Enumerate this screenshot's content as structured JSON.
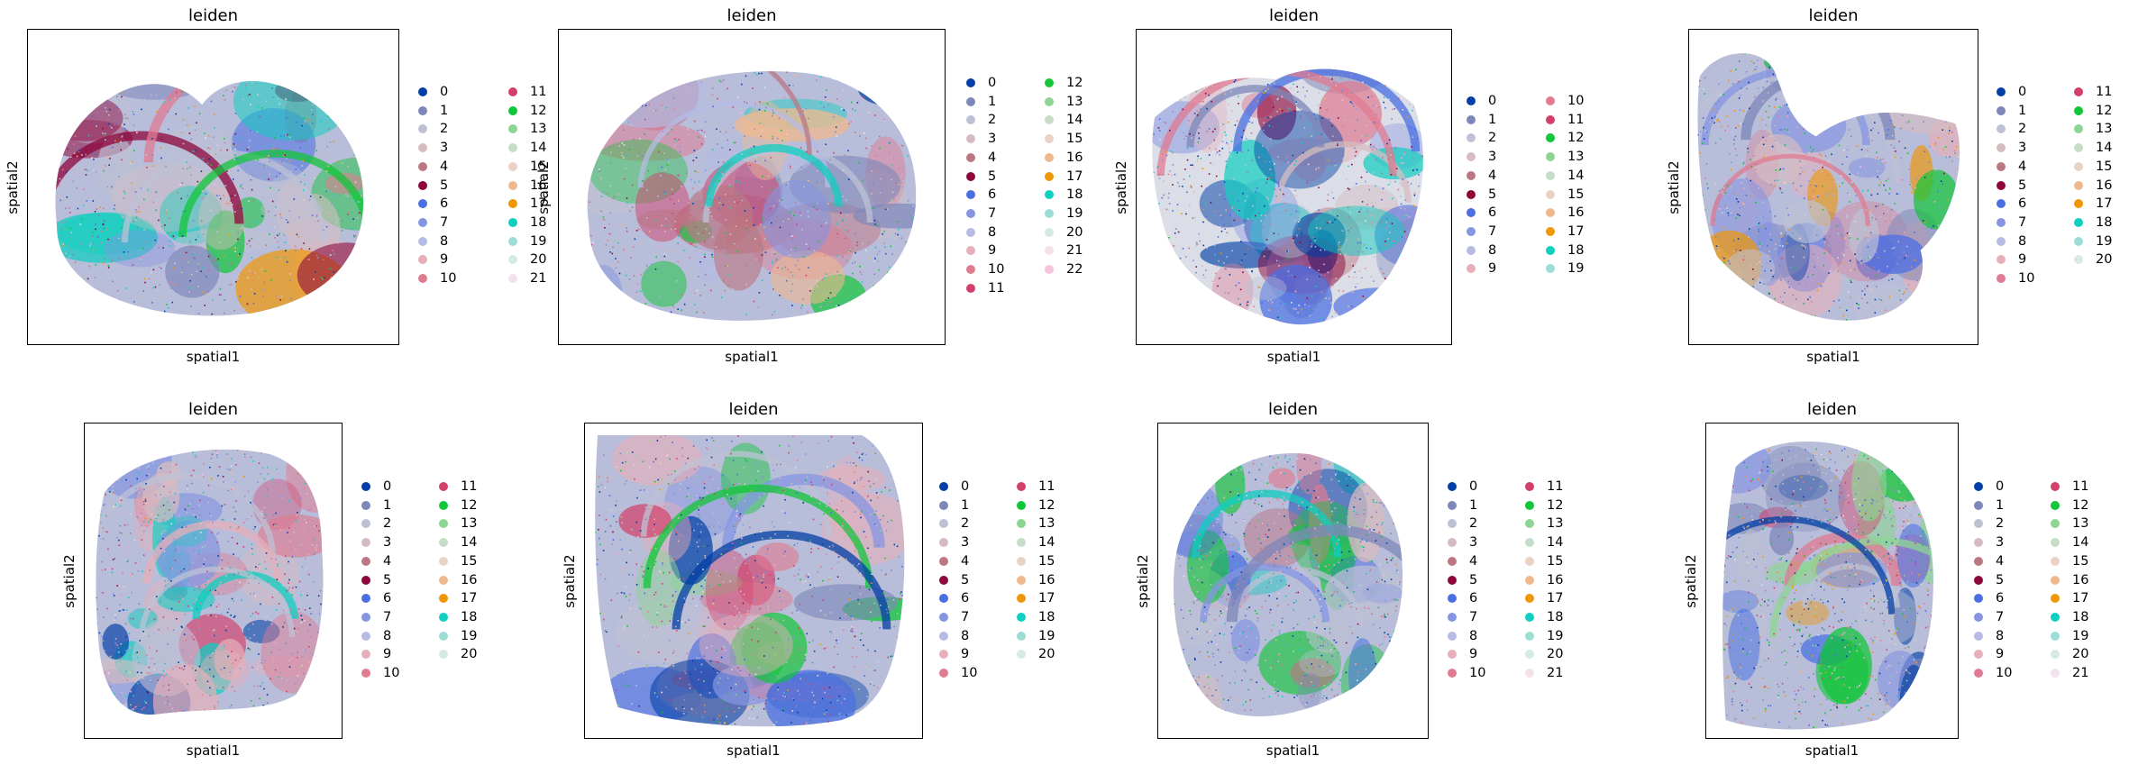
{
  "figure": {
    "panels": [
      {
        "title": "leiden",
        "xlabel": "spatial1",
        "ylabel": "spatial2",
        "legend": [
          "0",
          "1",
          "2",
          "3",
          "4",
          "5",
          "6",
          "7",
          "8",
          "9",
          "10",
          "11",
          "12",
          "13",
          "14",
          "15",
          "16",
          "17",
          "18",
          "19",
          "20",
          "21"
        ]
      },
      {
        "title": "leiden",
        "xlabel": "spatial1",
        "ylabel": "spatial2",
        "legend": [
          "0",
          "1",
          "2",
          "3",
          "4",
          "5",
          "6",
          "7",
          "8",
          "9",
          "10",
          "11",
          "12",
          "13",
          "14",
          "15",
          "16",
          "17",
          "18",
          "19",
          "20",
          "21",
          "22"
        ]
      },
      {
        "title": "leiden",
        "xlabel": "spatial1",
        "ylabel": "spatial2",
        "legend": [
          "0",
          "1",
          "2",
          "3",
          "4",
          "5",
          "6",
          "7",
          "8",
          "9",
          "10",
          "11",
          "12",
          "13",
          "14",
          "15",
          "16",
          "17",
          "18",
          "19"
        ]
      },
      {
        "title": "leiden",
        "xlabel": "spatial1",
        "ylabel": "spatial2",
        "legend": [
          "0",
          "1",
          "2",
          "3",
          "4",
          "5",
          "6",
          "7",
          "8",
          "9",
          "10",
          "11",
          "12",
          "13",
          "14",
          "15",
          "16",
          "17",
          "18",
          "19",
          "20"
        ]
      },
      {
        "title": "leiden",
        "xlabel": "spatial1",
        "ylabel": "spatial2",
        "legend": [
          "0",
          "1",
          "2",
          "3",
          "4",
          "5",
          "6",
          "7",
          "8",
          "9",
          "10",
          "11",
          "12",
          "13",
          "14",
          "15",
          "16",
          "17",
          "18",
          "19",
          "20"
        ]
      },
      {
        "title": "leiden",
        "xlabel": "spatial1",
        "ylabel": "spatial2",
        "legend": [
          "0",
          "1",
          "2",
          "3",
          "4",
          "5",
          "6",
          "7",
          "8",
          "9",
          "10",
          "11",
          "12",
          "13",
          "14",
          "15",
          "16",
          "17",
          "18",
          "19",
          "20"
        ]
      },
      {
        "title": "leiden",
        "xlabel": "spatial1",
        "ylabel": "spatial2",
        "legend": [
          "0",
          "1",
          "2",
          "3",
          "4",
          "5",
          "6",
          "7",
          "8",
          "9",
          "10",
          "11",
          "12",
          "13",
          "14",
          "15",
          "16",
          "17",
          "18",
          "19",
          "20",
          "21"
        ]
      },
      {
        "title": "leiden",
        "xlabel": "spatial1",
        "ylabel": "spatial2",
        "legend": [
          "0",
          "1",
          "2",
          "3",
          "4",
          "5",
          "6",
          "7",
          "8",
          "9",
          "10",
          "11",
          "12",
          "13",
          "14",
          "15",
          "16",
          "17",
          "18",
          "19",
          "20",
          "21"
        ]
      }
    ],
    "palette": [
      "#023fa5",
      "#7d87b9",
      "#bec1d4",
      "#d6bcc0",
      "#bb7784",
      "#8e063b",
      "#4a6fe3",
      "#8595e1",
      "#b5bbe3",
      "#e6afb9",
      "#e07b91",
      "#d33f6a",
      "#11c638",
      "#8dd593",
      "#c6dec7",
      "#ead3c6",
      "#f0b98d",
      "#ef9708",
      "#0fcfc0",
      "#9cded6",
      "#d5eae7",
      "#f3e1eb",
      "#f6c4e1"
    ]
  },
  "chart_data": [
    {
      "type": "scatter",
      "title": "leiden",
      "xlabel": "spatial1",
      "ylabel": "spatial2",
      "grid": false,
      "legend_position": "right",
      "categories": [
        "0",
        "1",
        "2",
        "3",
        "4",
        "5",
        "6",
        "7",
        "8",
        "9",
        "10",
        "11",
        "12",
        "13",
        "14",
        "15",
        "16",
        "17",
        "18",
        "19",
        "20",
        "21"
      ]
    },
    {
      "type": "scatter",
      "title": "leiden",
      "xlabel": "spatial1",
      "ylabel": "spatial2",
      "grid": false,
      "legend_position": "right",
      "categories": [
        "0",
        "1",
        "2",
        "3",
        "4",
        "5",
        "6",
        "7",
        "8",
        "9",
        "10",
        "11",
        "12",
        "13",
        "14",
        "15",
        "16",
        "17",
        "18",
        "19",
        "20",
        "21",
        "22"
      ]
    },
    {
      "type": "scatter",
      "title": "leiden",
      "xlabel": "spatial1",
      "ylabel": "spatial2",
      "grid": false,
      "legend_position": "right",
      "categories": [
        "0",
        "1",
        "2",
        "3",
        "4",
        "5",
        "6",
        "7",
        "8",
        "9",
        "10",
        "11",
        "12",
        "13",
        "14",
        "15",
        "16",
        "17",
        "18",
        "19"
      ]
    },
    {
      "type": "scatter",
      "title": "leiden",
      "xlabel": "spatial1",
      "ylabel": "spatial2",
      "grid": false,
      "legend_position": "right",
      "categories": [
        "0",
        "1",
        "2",
        "3",
        "4",
        "5",
        "6",
        "7",
        "8",
        "9",
        "10",
        "11",
        "12",
        "13",
        "14",
        "15",
        "16",
        "17",
        "18",
        "19",
        "20"
      ]
    },
    {
      "type": "scatter",
      "title": "leiden",
      "xlabel": "spatial1",
      "ylabel": "spatial2",
      "grid": false,
      "legend_position": "right",
      "categories": [
        "0",
        "1",
        "2",
        "3",
        "4",
        "5",
        "6",
        "7",
        "8",
        "9",
        "10",
        "11",
        "12",
        "13",
        "14",
        "15",
        "16",
        "17",
        "18",
        "19",
        "20"
      ]
    },
    {
      "type": "scatter",
      "title": "leiden",
      "xlabel": "spatial1",
      "ylabel": "spatial2",
      "grid": false,
      "legend_position": "right",
      "categories": [
        "0",
        "1",
        "2",
        "3",
        "4",
        "5",
        "6",
        "7",
        "8",
        "9",
        "10",
        "11",
        "12",
        "13",
        "14",
        "15",
        "16",
        "17",
        "18",
        "19",
        "20"
      ]
    },
    {
      "type": "scatter",
      "title": "leiden",
      "xlabel": "spatial1",
      "ylabel": "spatial2",
      "grid": false,
      "legend_position": "right",
      "categories": [
        "0",
        "1",
        "2",
        "3",
        "4",
        "5",
        "6",
        "7",
        "8",
        "9",
        "10",
        "11",
        "12",
        "13",
        "14",
        "15",
        "16",
        "17",
        "18",
        "19",
        "20",
        "21"
      ]
    },
    {
      "type": "scatter",
      "title": "leiden",
      "xlabel": "spatial1",
      "ylabel": "spatial2",
      "grid": false,
      "legend_position": "right",
      "categories": [
        "0",
        "1",
        "2",
        "3",
        "4",
        "5",
        "6",
        "7",
        "8",
        "9",
        "10",
        "11",
        "12",
        "13",
        "14",
        "15",
        "16",
        "17",
        "18",
        "19",
        "20",
        "21"
      ]
    }
  ]
}
